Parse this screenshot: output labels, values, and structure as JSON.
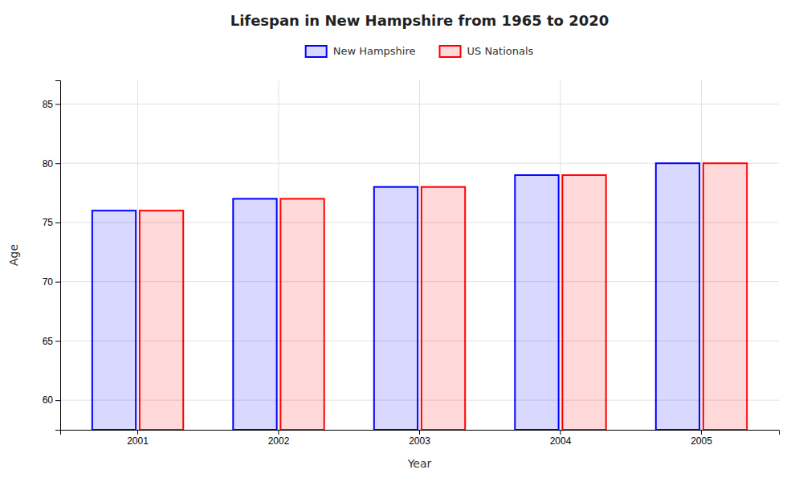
{
  "chart_data": {
    "type": "bar",
    "title": "Lifespan in New Hampshire from 1965 to 2020",
    "xlabel": "Year",
    "ylabel": "Age",
    "categories": [
      "2001",
      "2002",
      "2003",
      "2004",
      "2005"
    ],
    "series": [
      {
        "name": "New Hampshire",
        "color": "#0000ff",
        "values": [
          76,
          77,
          78,
          79,
          80
        ]
      },
      {
        "name": "US Nationals",
        "color": "#ff0000",
        "values": [
          76,
          77,
          78,
          79,
          80
        ]
      }
    ],
    "ylim": [
      57.5,
      87
    ],
    "yticks": [
      60,
      65,
      70,
      75,
      80,
      85
    ],
    "grid": true,
    "legend": "top"
  }
}
